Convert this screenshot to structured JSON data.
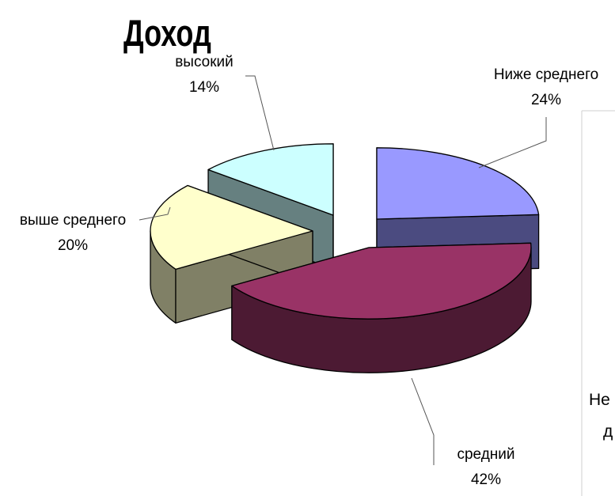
{
  "title": "Доход",
  "chart_data": {
    "type": "pie",
    "title": "Доход",
    "style": "3d-exploded",
    "slices": [
      {
        "label": "Ниже среднего",
        "value": 24,
        "value_label": "24%",
        "top_color": "#9999ff",
        "side_color": "#4b4b80"
      },
      {
        "label": "средний",
        "value": 42,
        "value_label": "42%",
        "top_color": "#993366",
        "side_color": "#4c1a33"
      },
      {
        "label": "выше среднего",
        "value": 20,
        "value_label": "20%",
        "top_color": "#ffffcc",
        "side_color": "#808066"
      },
      {
        "label": "высокий",
        "value": 14,
        "value_label": "14%",
        "top_color": "#ccffff",
        "side_color": "#668080"
      }
    ]
  },
  "side_panel": {
    "partial_text_1": "Не",
    "partial_text_2": "д"
  }
}
